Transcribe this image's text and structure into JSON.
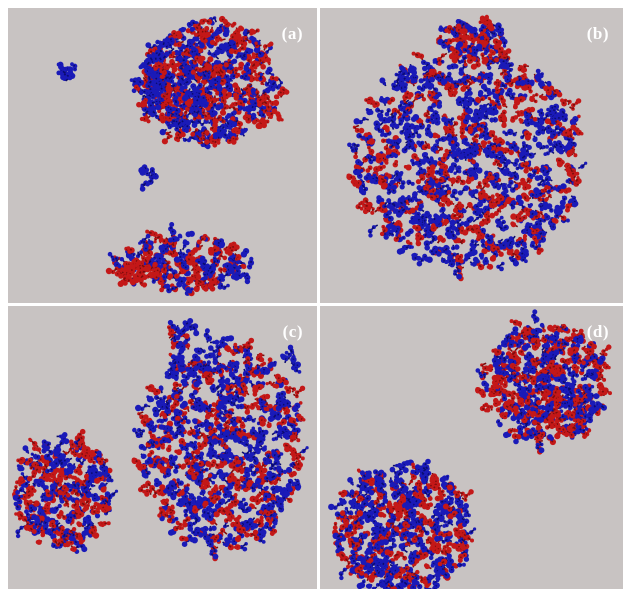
{
  "figure": {
    "colors": {
      "background": "#c8c3c2",
      "red_molecules": "#c41818",
      "blue_molecules": "#1a1ab8",
      "divider": "#ffffff",
      "label_text": "#ffffff"
    },
    "panels": [
      {
        "id": "a",
        "label": "(a)"
      },
      {
        "id": "b",
        "label": "(b)"
      },
      {
        "id": "c",
        "label": "(c)"
      },
      {
        "id": "d",
        "label": "(d)"
      }
    ]
  }
}
